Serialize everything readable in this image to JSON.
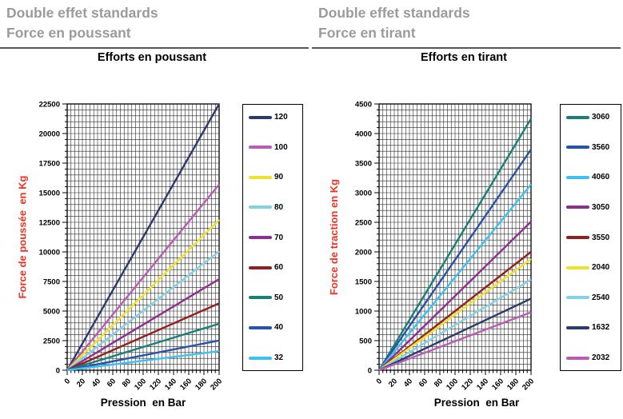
{
  "colors": {
    "header_gray": "#9b9b9b",
    "header_rule": "#565656",
    "axis_title_red": "#ee3322",
    "grid_line": "#262626",
    "axis_frame": "#000000"
  },
  "panels": [
    {
      "header_line1": "Double effet standards",
      "header_line2": "Force en poussant"
    },
    {
      "header_line1": "Double effet standards",
      "header_line2": "Force en tirant"
    }
  ],
  "chart_data": [
    {
      "type": "line",
      "title": "Efforts en poussant",
      "xlabel": "Pression  en Bar",
      "ylabel": "Force de poussée  en Kg",
      "xlim": [
        0,
        200
      ],
      "ylim": [
        0,
        22500
      ],
      "x_ticks": [
        0,
        20,
        40,
        60,
        80,
        100,
        120,
        140,
        160,
        180,
        200
      ],
      "y_ticks": [
        0,
        2500,
        5000,
        7500,
        10000,
        12500,
        15000,
        17500,
        20000,
        22500
      ],
      "x_minor_step": 5,
      "y_minor_step": 500,
      "grid": true,
      "legend_position": "right",
      "x": [
        0,
        200
      ],
      "series": [
        {
          "name": "120",
          "color": "#2c3a6e",
          "values": [
            0,
            22500
          ]
        },
        {
          "name": "100",
          "color": "#ba5cb5",
          "values": [
            0,
            15700
          ]
        },
        {
          "name": "90",
          "color": "#efe32a",
          "values": [
            0,
            12700
          ]
        },
        {
          "name": "80",
          "color": "#82d2e4",
          "values": [
            0,
            10050
          ]
        },
        {
          "name": "70",
          "color": "#8e2e90",
          "values": [
            0,
            7700
          ]
        },
        {
          "name": "60",
          "color": "#92201e",
          "values": [
            0,
            5650
          ]
        },
        {
          "name": "50",
          "color": "#188078",
          "values": [
            0,
            3930
          ]
        },
        {
          "name": "40",
          "color": "#2853a6",
          "values": [
            0,
            2510
          ]
        },
        {
          "name": "32",
          "color": "#3ec0f0",
          "values": [
            0,
            1610
          ]
        }
      ]
    },
    {
      "type": "line",
      "title": "Efforts en tirant",
      "xlabel": "Pression  en Bar",
      "ylabel": "Force de traction en Kg",
      "xlim": [
        0,
        200
      ],
      "ylim": [
        0,
        4500
      ],
      "x_ticks": [
        0,
        20,
        40,
        60,
        80,
        100,
        120,
        140,
        160,
        180,
        200
      ],
      "y_ticks": [
        0,
        500,
        1000,
        1500,
        2000,
        2500,
        3000,
        3500,
        4000,
        4500
      ],
      "x_minor_step": 5,
      "y_minor_step": 100,
      "grid": true,
      "legend_position": "right",
      "x": [
        0,
        200
      ],
      "series": [
        {
          "name": "3060",
          "color": "#188078",
          "values": [
            0,
            4250
          ]
        },
        {
          "name": "3560",
          "color": "#2853a6",
          "values": [
            0,
            3730
          ]
        },
        {
          "name": "4060",
          "color": "#3ec0f0",
          "values": [
            0,
            3140
          ]
        },
        {
          "name": "3050",
          "color": "#8e2e90",
          "values": [
            0,
            2510
          ]
        },
        {
          "name": "3550",
          "color": "#92201e",
          "values": [
            0,
            2000
          ]
        },
        {
          "name": "2040",
          "color": "#efe32a",
          "values": [
            0,
            1880
          ]
        },
        {
          "name": "2540",
          "color": "#82d2e4",
          "values": [
            0,
            1530
          ]
        },
        {
          "name": "1632",
          "color": "#2c3a6e",
          "values": [
            0,
            1210
          ]
        },
        {
          "name": "2032",
          "color": "#ba5cb5",
          "values": [
            0,
            980
          ]
        }
      ]
    }
  ]
}
